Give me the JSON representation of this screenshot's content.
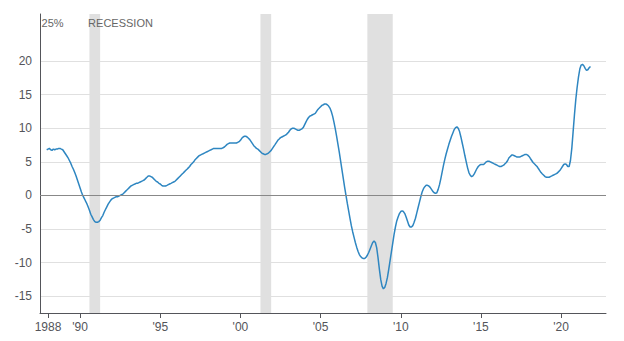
{
  "chart_data": {
    "type": "line",
    "color": "#2e86c1",
    "grid": true,
    "xlim": [
      1987.5,
      2022.8
    ],
    "xticks": [
      1988,
      {
        "value": 1990,
        "label": "'90"
      },
      {
        "value": 1995,
        "label": "'95"
      },
      {
        "value": 2000,
        "label": "'00"
      },
      {
        "value": 2005,
        "label": "'05"
      },
      {
        "value": 2010,
        "label": "'10"
      },
      {
        "value": 2015,
        "label": "'15"
      },
      {
        "value": 2020,
        "label": "'20"
      }
    ],
    "ylim": [
      -17.5,
      27.0
    ],
    "yticks": [
      -15,
      -10,
      -5,
      0,
      5,
      10,
      15,
      20
    ],
    "annotations": [
      {
        "text": "25%",
        "x": 1987.6,
        "y": 26.5
      },
      {
        "text": "RECESSION",
        "x": 1990.5,
        "y": 26.5
      }
    ],
    "shading": {
      "color": "#e0e0e0",
      "ranges": [
        [
          1990.583,
          1991.25
        ],
        [
          2001.25,
          2001.917
        ],
        [
          2007.917,
          2009.5
        ]
      ]
    },
    "x": [
      1987.917,
      1988.0,
      1988.083,
      1988.167,
      1988.25,
      1988.333,
      1988.417,
      1988.5,
      1988.583,
      1988.667,
      1988.75,
      1988.833,
      1988.917,
      1989.0,
      1989.083,
      1989.167,
      1989.25,
      1989.333,
      1989.417,
      1989.5,
      1989.583,
      1989.667,
      1989.75,
      1989.833,
      1989.917,
      1990.0,
      1990.083,
      1990.167,
      1990.25,
      1990.333,
      1990.417,
      1990.5,
      1990.583,
      1990.667,
      1990.75,
      1990.833,
      1990.917,
      1991.0,
      1991.083,
      1991.167,
      1991.25,
      1991.333,
      1991.417,
      1991.5,
      1991.583,
      1991.667,
      1991.75,
      1991.833,
      1991.917,
      1992.0,
      1992.083,
      1992.167,
      1992.25,
      1992.333,
      1992.417,
      1992.5,
      1992.583,
      1992.667,
      1992.75,
      1992.833,
      1992.917,
      1993.0,
      1993.083,
      1993.167,
      1993.25,
      1993.333,
      1993.417,
      1993.5,
      1993.583,
      1993.667,
      1993.75,
      1993.833,
      1993.917,
      1994.0,
      1994.083,
      1994.167,
      1994.25,
      1994.333,
      1994.417,
      1994.5,
      1994.583,
      1994.667,
      1994.75,
      1994.833,
      1994.917,
      1995.0,
      1995.083,
      1995.167,
      1995.25,
      1995.333,
      1995.417,
      1995.5,
      1995.583,
      1995.667,
      1995.75,
      1995.833,
      1995.917,
      1996.0,
      1996.083,
      1996.167,
      1996.25,
      1996.333,
      1996.417,
      1996.5,
      1996.583,
      1996.667,
      1996.75,
      1996.833,
      1996.917,
      1997.0,
      1997.083,
      1997.167,
      1997.25,
      1997.333,
      1997.417,
      1997.5,
      1997.583,
      1997.667,
      1997.75,
      1997.833,
      1997.917,
      1998.0,
      1998.083,
      1998.167,
      1998.25,
      1998.333,
      1998.417,
      1998.5,
      1998.583,
      1998.667,
      1998.75,
      1998.833,
      1998.917,
      1999.0,
      1999.083,
      1999.167,
      1999.25,
      1999.333,
      1999.417,
      1999.5,
      1999.583,
      1999.667,
      1999.75,
      1999.833,
      1999.917,
      2000.0,
      2000.083,
      2000.167,
      2000.25,
      2000.333,
      2000.417,
      2000.5,
      2000.583,
      2000.667,
      2000.75,
      2000.833,
      2000.917,
      2001.0,
      2001.083,
      2001.167,
      2001.25,
      2001.333,
      2001.417,
      2001.5,
      2001.583,
      2001.667,
      2001.75,
      2001.833,
      2001.917,
      2002.0,
      2002.083,
      2002.167,
      2002.25,
      2002.333,
      2002.417,
      2002.5,
      2002.583,
      2002.667,
      2002.75,
      2002.833,
      2002.917,
      2003.0,
      2003.083,
      2003.167,
      2003.25,
      2003.333,
      2003.417,
      2003.5,
      2003.583,
      2003.667,
      2003.75,
      2003.833,
      2003.917,
      2004.0,
      2004.083,
      2004.167,
      2004.25,
      2004.333,
      2004.417,
      2004.5,
      2004.583,
      2004.667,
      2004.75,
      2004.833,
      2004.917,
      2005.0,
      2005.083,
      2005.167,
      2005.25,
      2005.333,
      2005.417,
      2005.5,
      2005.583,
      2005.667,
      2005.75,
      2005.833,
      2005.917,
      2006.0,
      2006.083,
      2006.167,
      2006.25,
      2006.333,
      2006.417,
      2006.5,
      2006.583,
      2006.667,
      2006.75,
      2006.833,
      2006.917,
      2007.0,
      2007.083,
      2007.167,
      2007.25,
      2007.333,
      2007.417,
      2007.5,
      2007.583,
      2007.667,
      2007.75,
      2007.833,
      2007.917,
      2008.0,
      2008.083,
      2008.167,
      2008.25,
      2008.333,
      2008.417,
      2008.5,
      2008.583,
      2008.667,
      2008.75,
      2008.833,
      2008.917,
      2009.0,
      2009.083,
      2009.167,
      2009.25,
      2009.333,
      2009.417,
      2009.5,
      2009.583,
      2009.667,
      2009.75,
      2009.833,
      2009.917,
      2010.0,
      2010.083,
      2010.167,
      2010.25,
      2010.333,
      2010.417,
      2010.5,
      2010.583,
      2010.667,
      2010.75,
      2010.833,
      2010.917,
      2011.0,
      2011.083,
      2011.167,
      2011.25,
      2011.333,
      2011.417,
      2011.5,
      2011.583,
      2011.667,
      2011.75,
      2011.833,
      2011.917,
      2012.0,
      2012.083,
      2012.167,
      2012.25,
      2012.333,
      2012.417,
      2012.5,
      2012.583,
      2012.667,
      2012.75,
      2012.833,
      2012.917,
      2013.0,
      2013.083,
      2013.167,
      2013.25,
      2013.333,
      2013.417,
      2013.5,
      2013.583,
      2013.667,
      2013.75,
      2013.833,
      2013.917,
      2014.0,
      2014.083,
      2014.167,
      2014.25,
      2014.333,
      2014.417,
      2014.5,
      2014.583,
      2014.667,
      2014.75,
      2014.833,
      2014.917,
      2015.0,
      2015.083,
      2015.167,
      2015.25,
      2015.333,
      2015.417,
      2015.5,
      2015.583,
      2015.667,
      2015.75,
      2015.833,
      2015.917,
      2016.0,
      2016.083,
      2016.167,
      2016.25,
      2016.333,
      2016.417,
      2016.5,
      2016.583,
      2016.667,
      2016.75,
      2016.833,
      2016.917,
      2017.0,
      2017.083,
      2017.167,
      2017.25,
      2017.333,
      2017.417,
      2017.5,
      2017.583,
      2017.667,
      2017.75,
      2017.833,
      2017.917,
      2018.0,
      2018.083,
      2018.167,
      2018.25,
      2018.333,
      2018.417,
      2018.5,
      2018.583,
      2018.667,
      2018.75,
      2018.833,
      2018.917,
      2019.0,
      2019.083,
      2019.167,
      2019.25,
      2019.333,
      2019.417,
      2019.5,
      2019.583,
      2019.667,
      2019.75,
      2019.833,
      2019.917,
      2020.0,
      2020.083,
      2020.167,
      2020.25,
      2020.333,
      2020.417,
      2020.5,
      2020.583,
      2020.667,
      2020.75,
      2020.833,
      2020.917,
      2021.0,
      2021.083,
      2021.167,
      2021.25,
      2021.333,
      2021.417,
      2021.5,
      2021.583,
      2021.667,
      2021.75,
      2021.833
    ],
    "values": [
      6.8,
      6.9,
      7.0,
      6.8,
      6.7,
      6.9,
      6.8,
      6.9,
      6.9,
      7.0,
      7.0,
      6.9,
      6.8,
      6.5,
      6.2,
      5.9,
      5.6,
      5.2,
      4.8,
      4.3,
      3.9,
      3.4,
      2.9,
      2.3,
      1.7,
      1.1,
      0.5,
      0.0,
      -0.4,
      -0.8,
      -1.2,
      -1.7,
      -2.2,
      -2.8,
      -3.2,
      -3.6,
      -3.9,
      -4.0,
      -4.0,
      -3.9,
      -3.7,
      -3.3,
      -3.0,
      -2.5,
      -2.1,
      -1.7,
      -1.3,
      -1.0,
      -0.7,
      -0.5,
      -0.4,
      -0.3,
      -0.2,
      -0.2,
      -0.1,
      0.0,
      0.1,
      0.2,
      0.4,
      0.6,
      0.8,
      1.0,
      1.2,
      1.4,
      1.5,
      1.6,
      1.7,
      1.8,
      1.8,
      1.9,
      2.0,
      2.1,
      2.2,
      2.3,
      2.5,
      2.7,
      2.9,
      2.9,
      2.8,
      2.7,
      2.5,
      2.3,
      2.1,
      2.0,
      1.8,
      1.7,
      1.5,
      1.4,
      1.4,
      1.4,
      1.5,
      1.6,
      1.7,
      1.8,
      1.9,
      2.0,
      2.1,
      2.3,
      2.5,
      2.7,
      2.9,
      3.1,
      3.3,
      3.5,
      3.7,
      3.9,
      4.1,
      4.3,
      4.6,
      4.8,
      5.0,
      5.3,
      5.5,
      5.7,
      5.9,
      6.0,
      6.1,
      6.2,
      6.3,
      6.4,
      6.5,
      6.6,
      6.7,
      6.8,
      6.9,
      7.0,
      7.0,
      7.0,
      7.0,
      7.0,
      7.0,
      7.0,
      7.1,
      7.2,
      7.4,
      7.6,
      7.7,
      7.8,
      7.8,
      7.8,
      7.8,
      7.8,
      7.8,
      7.9,
      8.0,
      8.2,
      8.5,
      8.7,
      8.8,
      8.8,
      8.7,
      8.5,
      8.3,
      8.0,
      7.7,
      7.4,
      7.2,
      7.0,
      6.9,
      6.7,
      6.5,
      6.3,
      6.2,
      6.1,
      6.1,
      6.2,
      6.3,
      6.5,
      6.7,
      7.0,
      7.3,
      7.6,
      7.9,
      8.2,
      8.4,
      8.6,
      8.7,
      8.8,
      8.9,
      9.0,
      9.2,
      9.4,
      9.7,
      9.9,
      10.0,
      10.0,
      9.9,
      9.8,
      9.7,
      9.7,
      9.8,
      9.9,
      10.1,
      10.5,
      10.9,
      11.3,
      11.6,
      11.8,
      11.9,
      12.0,
      12.1,
      12.2,
      12.5,
      12.8,
      13.0,
      13.2,
      13.4,
      13.5,
      13.6,
      13.6,
      13.5,
      13.3,
      13.0,
      12.5,
      11.8,
      10.9,
      9.9,
      8.8,
      7.6,
      6.4,
      5.1,
      3.8,
      2.5,
      1.2,
      0.0,
      -1.2,
      -2.3,
      -3.4,
      -4.5,
      -5.4,
      -6.2,
      -7.0,
      -7.7,
      -8.3,
      -8.8,
      -9.1,
      -9.3,
      -9.4,
      -9.4,
      -9.2,
      -8.9,
      -8.5,
      -8.0,
      -7.5,
      -7.0,
      -6.8,
      -7.0,
      -7.8,
      -9.3,
      -11.0,
      -12.5,
      -13.5,
      -13.9,
      -13.7,
      -13.1,
      -12.2,
      -11.0,
      -9.7,
      -8.4,
      -7.1,
      -5.8,
      -4.7,
      -3.8,
      -3.2,
      -2.7,
      -2.4,
      -2.3,
      -2.4,
      -2.7,
      -3.2,
      -3.8,
      -4.4,
      -4.7,
      -4.7,
      -4.5,
      -4.0,
      -3.4,
      -2.6,
      -1.8,
      -1.0,
      -0.2,
      0.5,
      1.0,
      1.3,
      1.5,
      1.5,
      1.4,
      1.2,
      0.9,
      0.6,
      0.4,
      0.3,
      0.4,
      0.9,
      1.6,
      2.5,
      3.5,
      4.5,
      5.4,
      6.2,
      6.9,
      7.6,
      8.2,
      8.8,
      9.3,
      9.8,
      10.1,
      10.2,
      10.0,
      9.5,
      8.7,
      7.8,
      6.9,
      5.9,
      5.0,
      4.1,
      3.4,
      3.0,
      2.8,
      2.9,
      3.2,
      3.6,
      4.0,
      4.3,
      4.5,
      4.6,
      4.6,
      4.6,
      4.8,
      5.0,
      5.1,
      5.1,
      5.0,
      4.9,
      4.8,
      4.7,
      4.6,
      4.5,
      4.4,
      4.3,
      4.3,
      4.4,
      4.5,
      4.7,
      4.9,
      5.2,
      5.6,
      5.8,
      6.0,
      6.0,
      5.9,
      5.8,
      5.7,
      5.7,
      5.7,
      5.8,
      5.9,
      6.0,
      6.1,
      6.1,
      6.0,
      5.8,
      5.5,
      5.2,
      4.9,
      4.7,
      4.5,
      4.3,
      4.0,
      3.7,
      3.4,
      3.2,
      3.0,
      2.8,
      2.7,
      2.7,
      2.7,
      2.8,
      2.9,
      3.0,
      3.1,
      3.2,
      3.3,
      3.5,
      3.7,
      4.0,
      4.3,
      4.6,
      4.7,
      4.6,
      4.3,
      4.3,
      5.2,
      7.0,
      9.5,
      12.0,
      14.3,
      16.1,
      17.6,
      18.8,
      19.4,
      19.5,
      19.3,
      18.9,
      18.6,
      18.7,
      19.0,
      19.2
    ]
  }
}
